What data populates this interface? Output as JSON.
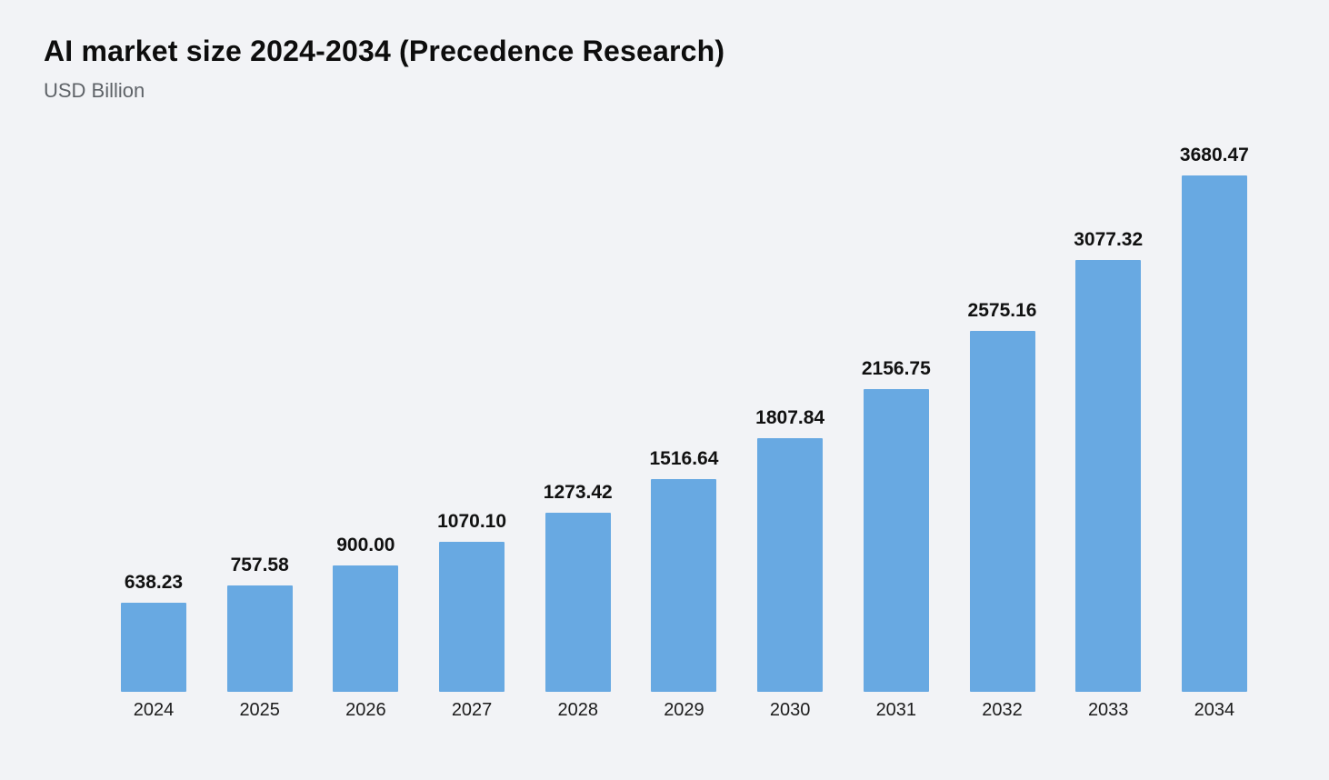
{
  "chart_data": {
    "type": "bar",
    "title": "AI market size 2024-2034 (Precedence Research)",
    "subtitle": "USD Billion",
    "categories": [
      "2024",
      "2025",
      "2026",
      "2027",
      "2028",
      "2029",
      "2030",
      "2031",
      "2032",
      "2033",
      "2034"
    ],
    "values": [
      638.23,
      757.58,
      900.0,
      1070.1,
      1273.42,
      1516.64,
      1807.84,
      2156.75,
      2575.16,
      3077.32,
      3680.47
    ],
    "value_labels": [
      "638.23",
      "757.58",
      "900.00",
      "1070.10",
      "1273.42",
      "1516.64",
      "1807.84",
      "2156.75",
      "2575.16",
      "3077.32",
      "3680.47"
    ],
    "ylabel": "USD Billion",
    "xlabel": "",
    "ylim": [
      0,
      3680.47
    ],
    "grid": false,
    "legend": "none",
    "bar_color": "#68a9e2",
    "background_color": "#f2f3f6",
    "title_color": "#0d0d0d",
    "subtitle_color": "#5f6368",
    "label_color": "#111111"
  }
}
